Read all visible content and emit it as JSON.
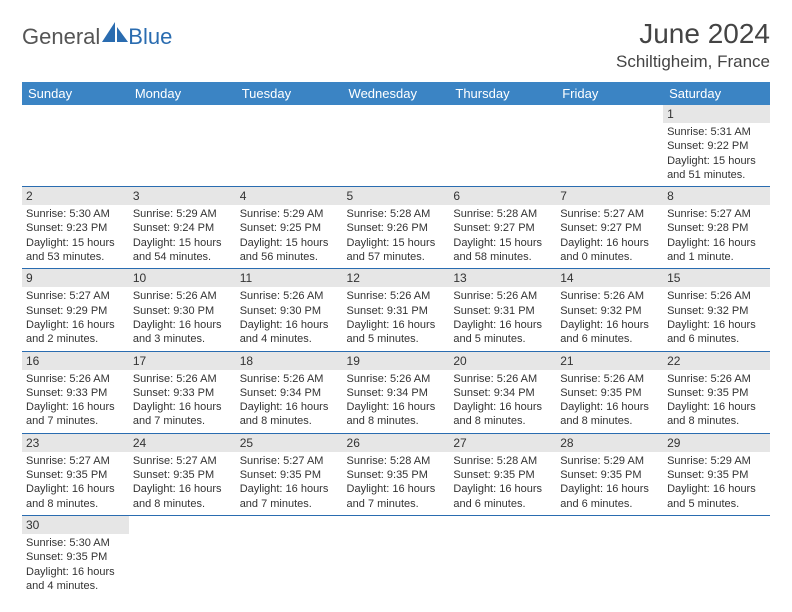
{
  "brand": {
    "part1": "General",
    "part2": "Blue",
    "logo_color": "#2a6cb0"
  },
  "title": "June 2024",
  "location": "Schiltigheim, France",
  "colors": {
    "header_bg": "#3b84c4",
    "header_text": "#ffffff",
    "daynum_bg": "#e6e6e6",
    "border": "#2a6cb0",
    "text": "#333333"
  },
  "day_headers": [
    "Sunday",
    "Monday",
    "Tuesday",
    "Wednesday",
    "Thursday",
    "Friday",
    "Saturday"
  ],
  "weeks": [
    [
      null,
      null,
      null,
      null,
      null,
      null,
      {
        "n": "1",
        "sunrise": "Sunrise: 5:31 AM",
        "sunset": "Sunset: 9:22 PM",
        "daylight": "Daylight: 15 hours and 51 minutes."
      }
    ],
    [
      {
        "n": "2",
        "sunrise": "Sunrise: 5:30 AM",
        "sunset": "Sunset: 9:23 PM",
        "daylight": "Daylight: 15 hours and 53 minutes."
      },
      {
        "n": "3",
        "sunrise": "Sunrise: 5:29 AM",
        "sunset": "Sunset: 9:24 PM",
        "daylight": "Daylight: 15 hours and 54 minutes."
      },
      {
        "n": "4",
        "sunrise": "Sunrise: 5:29 AM",
        "sunset": "Sunset: 9:25 PM",
        "daylight": "Daylight: 15 hours and 56 minutes."
      },
      {
        "n": "5",
        "sunrise": "Sunrise: 5:28 AM",
        "sunset": "Sunset: 9:26 PM",
        "daylight": "Daylight: 15 hours and 57 minutes."
      },
      {
        "n": "6",
        "sunrise": "Sunrise: 5:28 AM",
        "sunset": "Sunset: 9:27 PM",
        "daylight": "Daylight: 15 hours and 58 minutes."
      },
      {
        "n": "7",
        "sunrise": "Sunrise: 5:27 AM",
        "sunset": "Sunset: 9:27 PM",
        "daylight": "Daylight: 16 hours and 0 minutes."
      },
      {
        "n": "8",
        "sunrise": "Sunrise: 5:27 AM",
        "sunset": "Sunset: 9:28 PM",
        "daylight": "Daylight: 16 hours and 1 minute."
      }
    ],
    [
      {
        "n": "9",
        "sunrise": "Sunrise: 5:27 AM",
        "sunset": "Sunset: 9:29 PM",
        "daylight": "Daylight: 16 hours and 2 minutes."
      },
      {
        "n": "10",
        "sunrise": "Sunrise: 5:26 AM",
        "sunset": "Sunset: 9:30 PM",
        "daylight": "Daylight: 16 hours and 3 minutes."
      },
      {
        "n": "11",
        "sunrise": "Sunrise: 5:26 AM",
        "sunset": "Sunset: 9:30 PM",
        "daylight": "Daylight: 16 hours and 4 minutes."
      },
      {
        "n": "12",
        "sunrise": "Sunrise: 5:26 AM",
        "sunset": "Sunset: 9:31 PM",
        "daylight": "Daylight: 16 hours and 5 minutes."
      },
      {
        "n": "13",
        "sunrise": "Sunrise: 5:26 AM",
        "sunset": "Sunset: 9:31 PM",
        "daylight": "Daylight: 16 hours and 5 minutes."
      },
      {
        "n": "14",
        "sunrise": "Sunrise: 5:26 AM",
        "sunset": "Sunset: 9:32 PM",
        "daylight": "Daylight: 16 hours and 6 minutes."
      },
      {
        "n": "15",
        "sunrise": "Sunrise: 5:26 AM",
        "sunset": "Sunset: 9:32 PM",
        "daylight": "Daylight: 16 hours and 6 minutes."
      }
    ],
    [
      {
        "n": "16",
        "sunrise": "Sunrise: 5:26 AM",
        "sunset": "Sunset: 9:33 PM",
        "daylight": "Daylight: 16 hours and 7 minutes."
      },
      {
        "n": "17",
        "sunrise": "Sunrise: 5:26 AM",
        "sunset": "Sunset: 9:33 PM",
        "daylight": "Daylight: 16 hours and 7 minutes."
      },
      {
        "n": "18",
        "sunrise": "Sunrise: 5:26 AM",
        "sunset": "Sunset: 9:34 PM",
        "daylight": "Daylight: 16 hours and 8 minutes."
      },
      {
        "n": "19",
        "sunrise": "Sunrise: 5:26 AM",
        "sunset": "Sunset: 9:34 PM",
        "daylight": "Daylight: 16 hours and 8 minutes."
      },
      {
        "n": "20",
        "sunrise": "Sunrise: 5:26 AM",
        "sunset": "Sunset: 9:34 PM",
        "daylight": "Daylight: 16 hours and 8 minutes."
      },
      {
        "n": "21",
        "sunrise": "Sunrise: 5:26 AM",
        "sunset": "Sunset: 9:35 PM",
        "daylight": "Daylight: 16 hours and 8 minutes."
      },
      {
        "n": "22",
        "sunrise": "Sunrise: 5:26 AM",
        "sunset": "Sunset: 9:35 PM",
        "daylight": "Daylight: 16 hours and 8 minutes."
      }
    ],
    [
      {
        "n": "23",
        "sunrise": "Sunrise: 5:27 AM",
        "sunset": "Sunset: 9:35 PM",
        "daylight": "Daylight: 16 hours and 8 minutes."
      },
      {
        "n": "24",
        "sunrise": "Sunrise: 5:27 AM",
        "sunset": "Sunset: 9:35 PM",
        "daylight": "Daylight: 16 hours and 8 minutes."
      },
      {
        "n": "25",
        "sunrise": "Sunrise: 5:27 AM",
        "sunset": "Sunset: 9:35 PM",
        "daylight": "Daylight: 16 hours and 7 minutes."
      },
      {
        "n": "26",
        "sunrise": "Sunrise: 5:28 AM",
        "sunset": "Sunset: 9:35 PM",
        "daylight": "Daylight: 16 hours and 7 minutes."
      },
      {
        "n": "27",
        "sunrise": "Sunrise: 5:28 AM",
        "sunset": "Sunset: 9:35 PM",
        "daylight": "Daylight: 16 hours and 6 minutes."
      },
      {
        "n": "28",
        "sunrise": "Sunrise: 5:29 AM",
        "sunset": "Sunset: 9:35 PM",
        "daylight": "Daylight: 16 hours and 6 minutes."
      },
      {
        "n": "29",
        "sunrise": "Sunrise: 5:29 AM",
        "sunset": "Sunset: 9:35 PM",
        "daylight": "Daylight: 16 hours and 5 minutes."
      }
    ],
    [
      {
        "n": "30",
        "sunrise": "Sunrise: 5:30 AM",
        "sunset": "Sunset: 9:35 PM",
        "daylight": "Daylight: 16 hours and 4 minutes."
      },
      null,
      null,
      null,
      null,
      null,
      null
    ]
  ]
}
